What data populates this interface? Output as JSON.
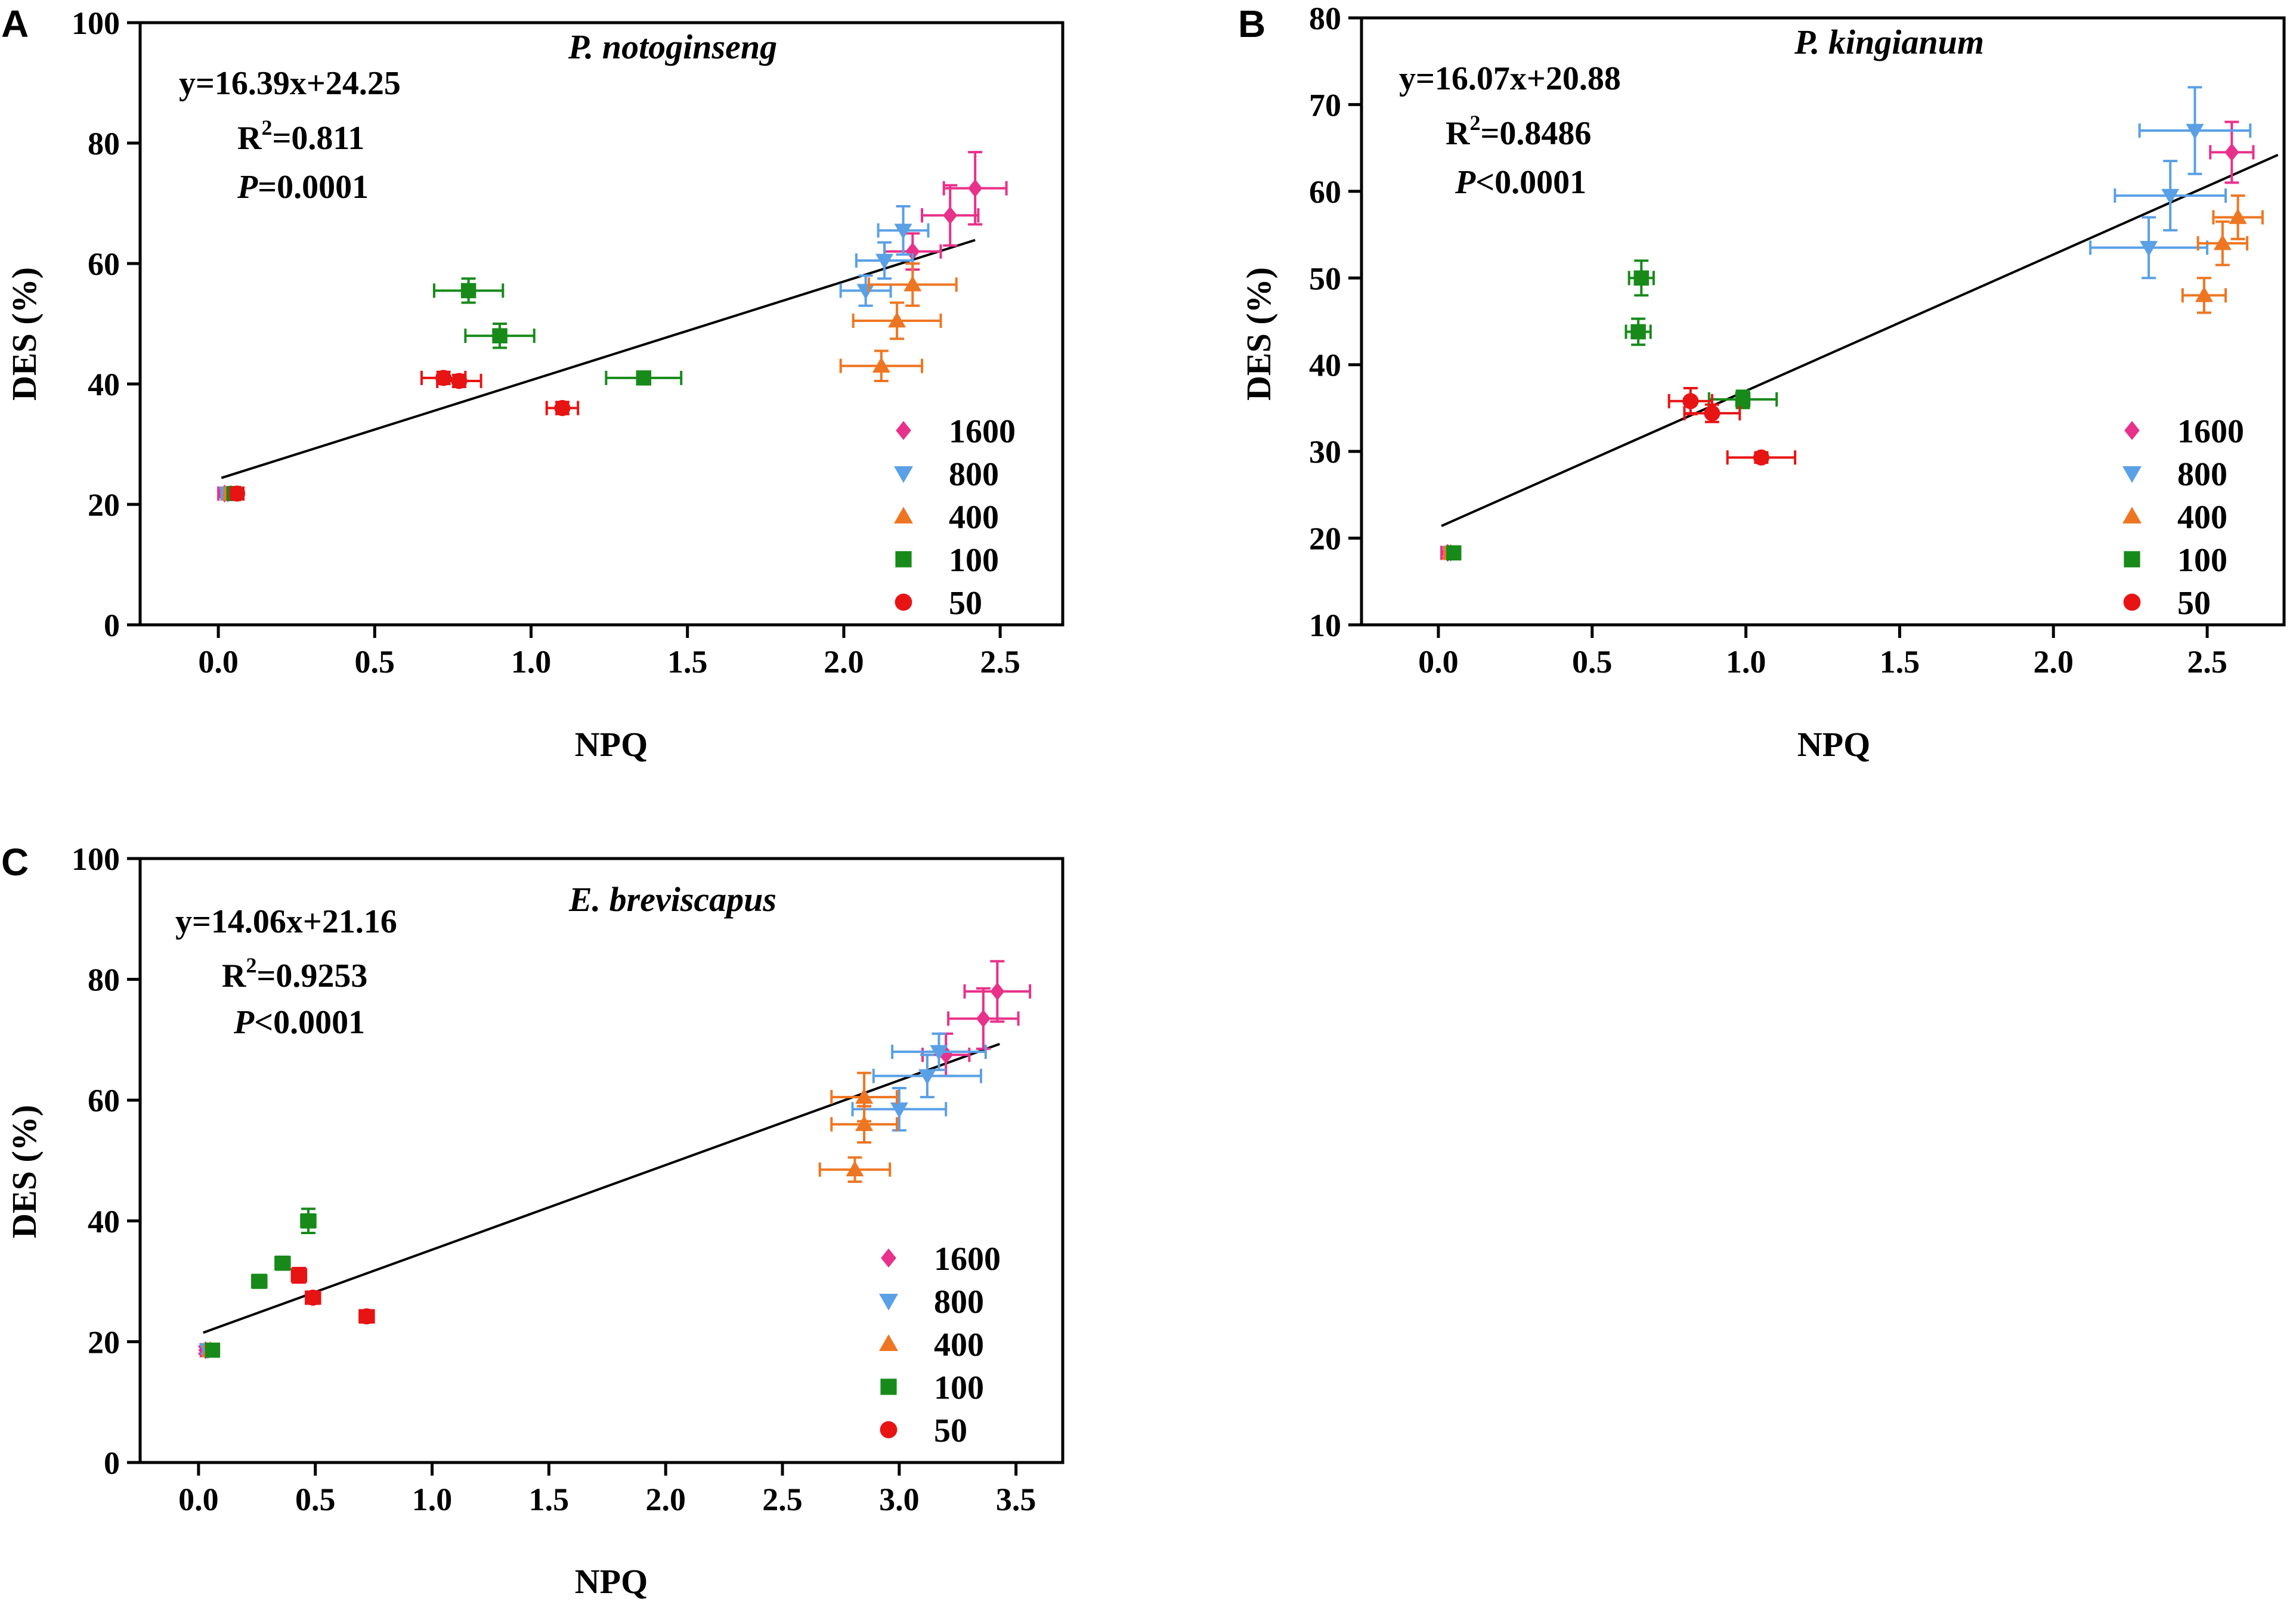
{
  "figure": {
    "legend_order": [
      "1600",
      "800",
      "400",
      "100",
      "50"
    ],
    "groups": {
      "1600": {
        "color": "#e8318a",
        "marker": "diamond"
      },
      "800": {
        "color": "#5aa0e6",
        "marker": "triangle-down"
      },
      "400": {
        "color": "#ee7622",
        "marker": "triangle-up"
      },
      "100": {
        "color": "#178a1a",
        "marker": "square"
      },
      "50": {
        "color": "#e81313",
        "marker": "circle"
      }
    },
    "fit_line_color": "#000000"
  },
  "chart_data": [
    {
      "panel": "A",
      "type": "scatter",
      "title": "P. notoginseng",
      "xlabel": "NPQ",
      "ylabel": "DES (%)",
      "xlim": [
        -0.25,
        2.7
      ],
      "ylim": [
        0,
        100
      ],
      "xticks": [
        "0.0",
        "0.5",
        "1.0",
        "1.5",
        "2.0",
        "2.5"
      ],
      "yticks": [
        "0",
        "20",
        "40",
        "60",
        "80",
        "100"
      ],
      "equation": "y=16.39x+24.25",
      "r2_label": "R",
      "r2_sup": "2",
      "r2_value": "=0.811",
      "p_label": "P",
      "p_value": "=0.0001",
      "fit": {
        "x": [
          0.01,
          2.42
        ],
        "y": [
          24.4,
          63.9
        ]
      },
      "series": [
        {
          "name": "1600",
          "points": [
            {
              "x": 0.02,
              "y": 21.8,
              "xerr": 0.02,
              "yerr": 0.6
            },
            {
              "x": 2.22,
              "y": 62.0,
              "xerr": 0.09,
              "yerr": 3.0
            },
            {
              "x": 2.34,
              "y": 68.0,
              "xerr": 0.09,
              "yerr": 5.0
            },
            {
              "x": 2.42,
              "y": 72.5,
              "xerr": 0.1,
              "yerr": 6.0
            }
          ]
        },
        {
          "name": "800",
          "points": [
            {
              "x": 0.03,
              "y": 21.8,
              "xerr": 0.02,
              "yerr": 0.6
            },
            {
              "x": 2.07,
              "y": 55.5,
              "xerr": 0.08,
              "yerr": 2.5
            },
            {
              "x": 2.13,
              "y": 60.5,
              "xerr": 0.09,
              "yerr": 3.0
            },
            {
              "x": 2.19,
              "y": 65.5,
              "xerr": 0.08,
              "yerr": 4.0
            }
          ]
        },
        {
          "name": "400",
          "points": [
            {
              "x": 0.04,
              "y": 21.8,
              "xerr": 0.02,
              "yerr": 0.6
            },
            {
              "x": 2.12,
              "y": 43.0,
              "xerr": 0.13,
              "yerr": 2.5
            },
            {
              "x": 2.17,
              "y": 50.5,
              "xerr": 0.14,
              "yerr": 3.0
            },
            {
              "x": 2.22,
              "y": 56.5,
              "xerr": 0.14,
              "yerr": 3.5
            }
          ]
        },
        {
          "name": "100",
          "points": [
            {
              "x": 0.05,
              "y": 21.8,
              "xerr": 0.02,
              "yerr": 0.6
            },
            {
              "x": 0.8,
              "y": 55.5,
              "xerr": 0.11,
              "yerr": 2.0
            },
            {
              "x": 0.9,
              "y": 48.0,
              "xerr": 0.11,
              "yerr": 2.0
            },
            {
              "x": 1.36,
              "y": 41.0,
              "xerr": 0.12,
              "yerr": 1.0
            }
          ]
        },
        {
          "name": "50",
          "points": [
            {
              "x": 0.06,
              "y": 21.8,
              "xerr": 0.02,
              "yerr": 0.6
            },
            {
              "x": 0.72,
              "y": 41.0,
              "xerr": 0.07,
              "yerr": 1.0
            },
            {
              "x": 0.77,
              "y": 40.5,
              "xerr": 0.07,
              "yerr": 1.0
            },
            {
              "x": 1.1,
              "y": 36.0,
              "xerr": 0.05,
              "yerr": 1.0
            }
          ]
        }
      ]
    },
    {
      "panel": "B",
      "type": "scatter",
      "title": "P. kingianum",
      "xlabel": "NPQ",
      "ylabel": "DES (%)",
      "xlim": [
        -0.25,
        2.75
      ],
      "ylim": [
        10,
        80
      ],
      "xticks": [
        "0.0",
        "0.5",
        "1.0",
        "1.5",
        "2.0",
        "2.5"
      ],
      "yticks": [
        "10",
        "20",
        "30",
        "40",
        "50",
        "60",
        "70",
        "80"
      ],
      "equation": "y=16.07x+20.88",
      "r2_label": "R",
      "r2_sup": "2",
      "r2_value": "=0.8486",
      "p_label": "P",
      "p_value": "<0.0001",
      "fit": {
        "x": [
          0.01,
          2.73
        ],
        "y": [
          21.4,
          64.2
        ]
      },
      "series": [
        {
          "name": "1600",
          "points": [
            {
              "x": 0.03,
              "y": 18.3,
              "xerr": 0.02,
              "yerr": 0.6
            },
            {
              "x": 2.58,
              "y": 64.5,
              "xerr": 0.07,
              "yerr": 3.5
            }
          ]
        },
        {
          "name": "800",
          "points": [
            {
              "x": 0.04,
              "y": 18.3,
              "xerr": 0.02,
              "yerr": 0.6
            },
            {
              "x": 2.31,
              "y": 53.5,
              "xerr": 0.19,
              "yerr": 3.5
            },
            {
              "x": 2.38,
              "y": 59.5,
              "xerr": 0.18,
              "yerr": 4.0
            },
            {
              "x": 2.46,
              "y": 67.0,
              "xerr": 0.18,
              "yerr": 5.0
            }
          ]
        },
        {
          "name": "400",
          "points": [
            {
              "x": 0.04,
              "y": 18.3,
              "xerr": 0.02,
              "yerr": 0.6
            },
            {
              "x": 2.49,
              "y": 48.0,
              "xerr": 0.07,
              "yerr": 2.0
            },
            {
              "x": 2.55,
              "y": 54.0,
              "xerr": 0.08,
              "yerr": 2.5
            },
            {
              "x": 2.6,
              "y": 57.0,
              "xerr": 0.08,
              "yerr": 2.5
            }
          ]
        },
        {
          "name": "100",
          "points": [
            {
              "x": 0.05,
              "y": 18.3,
              "xerr": 0.02,
              "yerr": 0.6
            },
            {
              "x": 0.66,
              "y": 50.0,
              "xerr": 0.04,
              "yerr": 2.0
            },
            {
              "x": 0.65,
              "y": 43.8,
              "xerr": 0.04,
              "yerr": 1.5
            },
            {
              "x": 0.99,
              "y": 36.0,
              "xerr": 0.11,
              "yerr": 1.0
            }
          ]
        },
        {
          "name": "50",
          "points": [
            {
              "x": 0.82,
              "y": 35.8,
              "xerr": 0.07,
              "yerr": 1.5
            },
            {
              "x": 0.89,
              "y": 34.4,
              "xerr": 0.09,
              "yerr": 1.0
            },
            {
              "x": 1.05,
              "y": 29.3,
              "xerr": 0.11,
              "yerr": 0.6
            }
          ]
        }
      ]
    },
    {
      "panel": "C",
      "type": "scatter",
      "title": "E. breviscapus",
      "xlabel": "NPQ",
      "ylabel": "DES (%)",
      "xlim": [
        -0.25,
        3.7
      ],
      "ylim": [
        0,
        100
      ],
      "xticks": [
        "0.0",
        "0.5",
        "1.0",
        "1.5",
        "2.0",
        "2.5",
        "3.0",
        "3.5"
      ],
      "yticks": [
        "0",
        "20",
        "40",
        "60",
        "80",
        "100"
      ],
      "equation": "y=14.06x+21.16",
      "r2_label": "R",
      "r2_sup": "2",
      "r2_value": "=0.9253",
      "p_label": "P",
      "p_value": "<0.0001",
      "fit": {
        "x": [
          0.02,
          3.43
        ],
        "y": [
          21.5,
          69.3
        ]
      },
      "series": [
        {
          "name": "1600",
          "points": [
            {
              "x": 0.03,
              "y": 18.6,
              "xerr": 0.02,
              "yerr": 0.6
            },
            {
              "x": 3.2,
              "y": 67.5,
              "xerr": 0.1,
              "yerr": 3.5
            },
            {
              "x": 3.36,
              "y": 73.5,
              "xerr": 0.15,
              "yerr": 5.0
            },
            {
              "x": 3.42,
              "y": 78.0,
              "xerr": 0.14,
              "yerr": 5.0
            }
          ]
        },
        {
          "name": "800",
          "points": [
            {
              "x": 0.04,
              "y": 18.6,
              "xerr": 0.02,
              "yerr": 0.6
            },
            {
              "x": 3.0,
              "y": 58.5,
              "xerr": 0.2,
              "yerr": 3.5
            },
            {
              "x": 3.12,
              "y": 64.0,
              "xerr": 0.23,
              "yerr": 3.5
            },
            {
              "x": 3.17,
              "y": 68.0,
              "xerr": 0.2,
              "yerr": 3.0
            }
          ]
        },
        {
          "name": "400",
          "points": [
            {
              "x": 0.05,
              "y": 18.6,
              "xerr": 0.02,
              "yerr": 0.6
            },
            {
              "x": 2.81,
              "y": 48.5,
              "xerr": 0.15,
              "yerr": 2.0
            },
            {
              "x": 2.85,
              "y": 56.0,
              "xerr": 0.14,
              "yerr": 3.0
            },
            {
              "x": 2.85,
              "y": 60.5,
              "xerr": 0.14,
              "yerr": 4.0
            }
          ]
        },
        {
          "name": "100",
          "points": [
            {
              "x": 0.06,
              "y": 18.6,
              "xerr": 0.02,
              "yerr": 0.6
            },
            {
              "x": 0.26,
              "y": 30.0,
              "xerr": 0.03,
              "yerr": 1.0
            },
            {
              "x": 0.36,
              "y": 33.0,
              "xerr": 0.03,
              "yerr": 1.0
            },
            {
              "x": 0.47,
              "y": 40.0,
              "xerr": 0.03,
              "yerr": 2.0
            }
          ]
        },
        {
          "name": "50",
          "points": [
            {
              "x": 0.43,
              "y": 31.0,
              "xerr": 0.03,
              "yerr": 1.2
            },
            {
              "x": 0.49,
              "y": 27.3,
              "xerr": 0.03,
              "yerr": 1.0
            },
            {
              "x": 0.72,
              "y": 24.2,
              "xerr": 0.03,
              "yerr": 1.0
            }
          ]
        }
      ]
    }
  ]
}
